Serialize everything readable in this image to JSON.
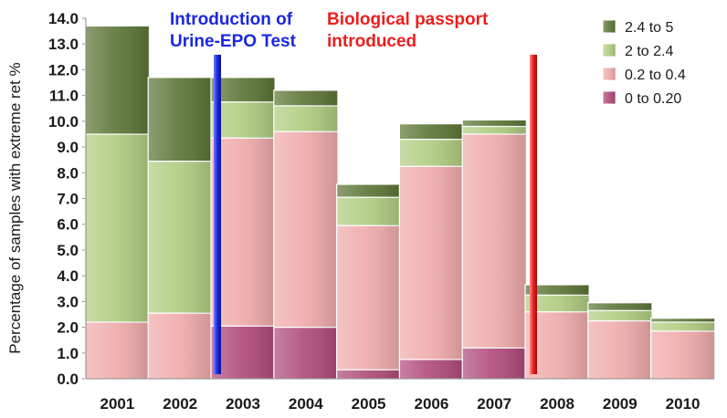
{
  "chart_data": {
    "type": "bar",
    "stacked": true,
    "categories": [
      "2001",
      "2002",
      "2003",
      "2004",
      "2005",
      "2006",
      "2007",
      "2008",
      "2009",
      "2010"
    ],
    "series": [
      {
        "name": "0 to 0.20",
        "color": "#b04a7a",
        "values": [
          0.0,
          0.0,
          2.05,
          2.0,
          0.35,
          0.75,
          1.2,
          0.0,
          0.0,
          0.0
        ]
      },
      {
        "name": "0.2 to 0.4",
        "color": "#f0aaaa",
        "values": [
          2.2,
          2.55,
          7.3,
          7.6,
          5.6,
          7.5,
          8.3,
          2.6,
          2.25,
          1.85
        ]
      },
      {
        "name": "2 to 2.4",
        "color": "#b0cc80",
        "values": [
          7.3,
          5.9,
          1.4,
          1.0,
          1.1,
          1.05,
          0.3,
          0.65,
          0.4,
          0.35
        ]
      },
      {
        "name": "2.4 to 5",
        "color": "#5b7535",
        "values": [
          4.2,
          3.25,
          0.95,
          0.6,
          0.5,
          0.6,
          0.25,
          0.4,
          0.3,
          0.15
        ]
      }
    ],
    "ylabel": "Percentage of samples with extreme ret %",
    "xlabel": "",
    "ylim": [
      0,
      14
    ],
    "yticks": [
      "0.0",
      "1.0",
      "2.0",
      "3.0",
      "4.0",
      "5.0",
      "6.0",
      "7.0",
      "8.0",
      "9.0",
      "10.0",
      "11.0",
      "12.0",
      "13.0",
      "14.0"
    ],
    "grid": false,
    "legend_position": "top-right",
    "annotations": [
      {
        "id": "epo",
        "lines": [
          "Introduction of",
          "Urine-EPO Test"
        ],
        "color": "#1a28e0",
        "marker_after_category": "2002"
      },
      {
        "id": "passport",
        "lines": [
          "Biological passport",
          "introduced"
        ],
        "color": "#ee1d1d",
        "marker_after_category": "2007"
      }
    ]
  }
}
